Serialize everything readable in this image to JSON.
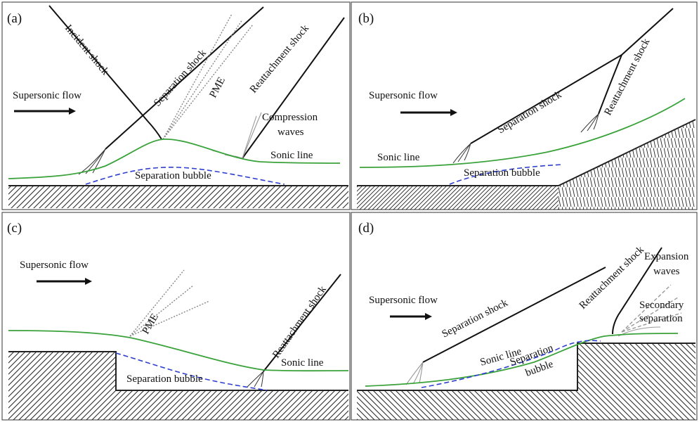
{
  "panels": {
    "a": {
      "tag": "(a)",
      "incident_shock": "Incident shock",
      "separation_shock": "Separation shock",
      "pme": "PME",
      "reattachment_shock": "Reattachment shock",
      "supersonic_flow": "Supersonic flow",
      "compression_waves_1": "Compression",
      "compression_waves_2": "waves",
      "sonic_line": "Sonic line",
      "separation_bubble": "Separation bubble"
    },
    "b": {
      "tag": "(b)",
      "separation_shock": "Separation shock",
      "reattachment_shock": "Reattachment shock",
      "supersonic_flow": "Supersonic flow",
      "sonic_line": "Sonic line",
      "separation_bubble": "Separation bubble"
    },
    "c": {
      "tag": "(c)",
      "supersonic_flow": "Supersonic flow",
      "pme": "PME",
      "reattachment_shock": "Reattachment shock",
      "sonic_line": "Sonic line",
      "separation_bubble": "Separation bubble"
    },
    "d": {
      "tag": "(d)",
      "supersonic_flow": "Supersonic flow",
      "separation_shock": "Separation shock",
      "reattachment_shock": "Reattachment shock",
      "expansion_waves_1": "Expansion",
      "expansion_waves_2": "waves",
      "secondary_separation_1": "Secondary",
      "secondary_separation_2": "separation",
      "sonic_line": "Sonic line",
      "separation_bubble_1": "Separation",
      "separation_bubble_2": "bubble"
    }
  },
  "colors": {
    "sonic_line": "#3aa23a",
    "separation_bubble": "#2e3fd0",
    "shock": "#111111",
    "waves": "#999999"
  }
}
